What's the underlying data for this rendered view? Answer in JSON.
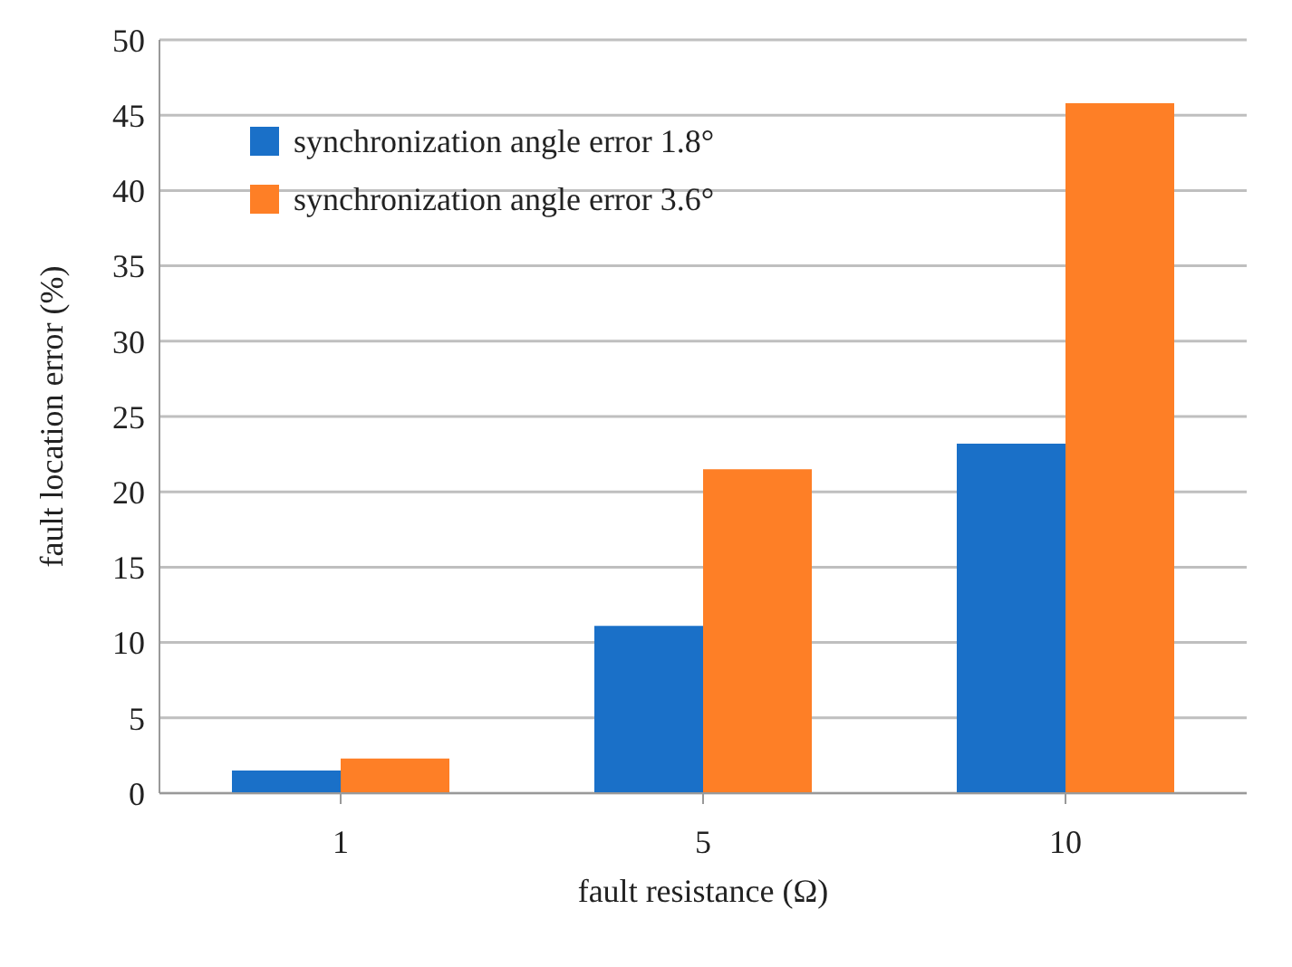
{
  "chart_data": {
    "type": "bar",
    "xlabel": "fault resistance (Ω)",
    "ylabel": "fault location error (%)",
    "categories": [
      "1",
      "5",
      "10"
    ],
    "series": [
      {
        "name": "synchronization angle error 1.8°",
        "color": "#1a70c8",
        "values": [
          1.5,
          11.1,
          23.2
        ]
      },
      {
        "name": "synchronization angle error 3.6°",
        "color": "#fe7f26",
        "values": [
          2.3,
          21.5,
          45.8
        ]
      }
    ],
    "ylim": [
      0,
      50
    ],
    "yticks": [
      0,
      5,
      10,
      15,
      20,
      25,
      30,
      35,
      40,
      45,
      50
    ],
    "grid": "y",
    "legend": "top left"
  }
}
